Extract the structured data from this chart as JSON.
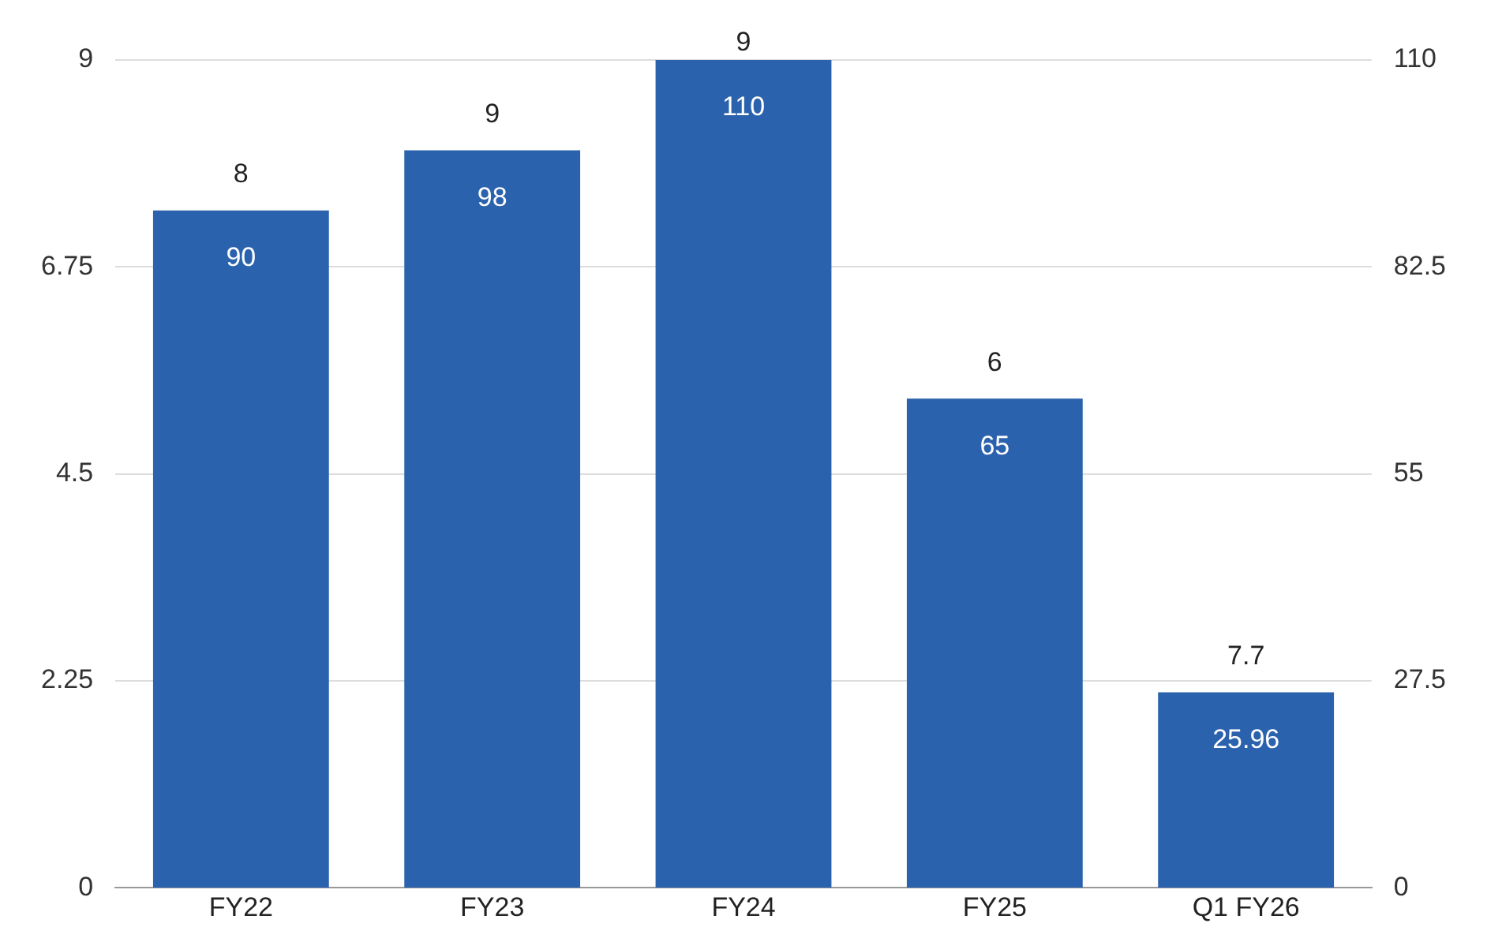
{
  "chart_data": {
    "type": "bar",
    "categories": [
      "FY22",
      "FY23",
      "FY24",
      "FY25",
      "Q1 FY26"
    ],
    "series": [
      {
        "color": "#2b62ad",
        "axis": "y2",
        "values": [
          90,
          98,
          110,
          65,
          25.96
        ]
      }
    ],
    "data_labels": true,
    "ylim": [
      0,
      9
    ],
    "yticks": [
      0,
      2.25,
      4.5,
      6.75,
      9
    ],
    "y2lim": [
      0,
      110
    ],
    "y2ticks": [
      0,
      27.5,
      55,
      82.5,
      110
    ],
    "grid": "y",
    "legend": false,
    "annotations": [
      "8",
      "9",
      "9",
      "6",
      "7.7"
    ]
  }
}
